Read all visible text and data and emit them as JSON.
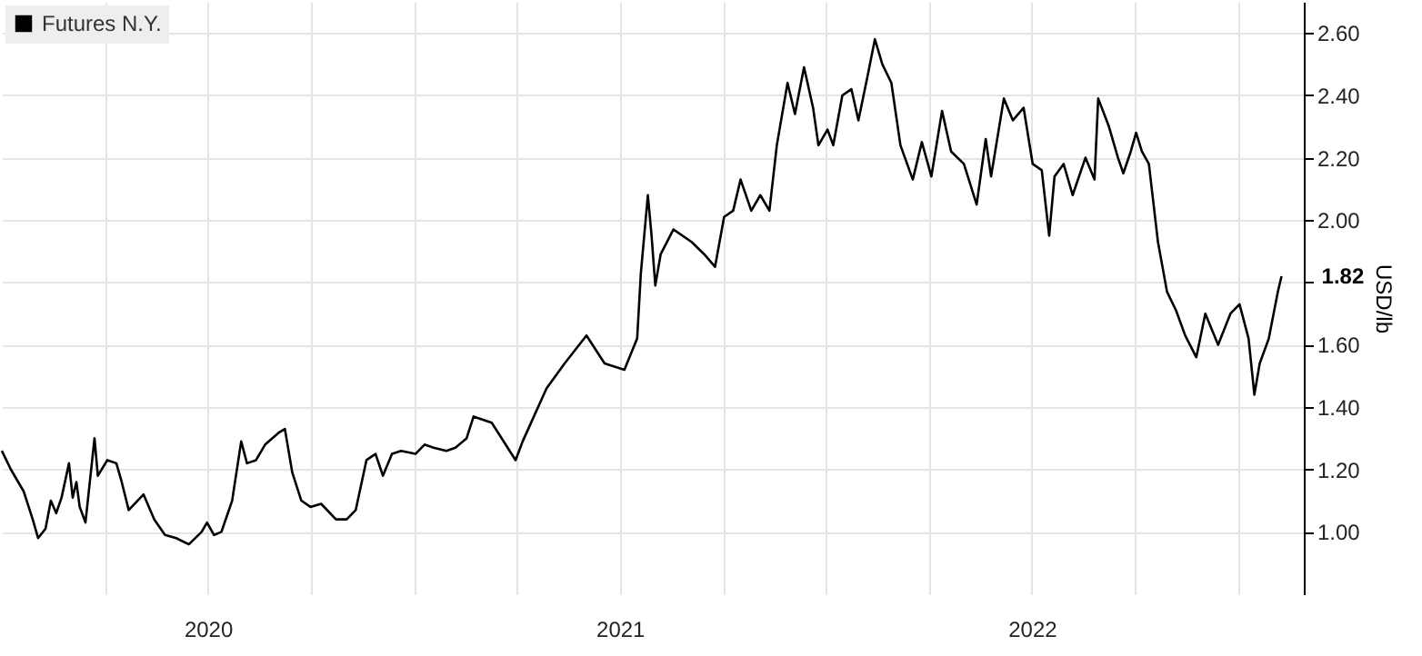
{
  "chart_data": {
    "type": "line",
    "ylabel": "USD/lb",
    "legend": "top left",
    "grid": true,
    "xlim": [
      2020,
      2023.16
    ],
    "xticks": [
      {
        "value": 2020.25,
        "label": null
      },
      {
        "value": 2020.5,
        "label": "2020"
      },
      {
        "value": 2020.75,
        "label": null
      },
      {
        "value": 2021,
        "label": null
      },
      {
        "value": 2021.25,
        "label": null
      },
      {
        "value": 2021.5,
        "label": "2021"
      },
      {
        "value": 2021.75,
        "label": null
      },
      {
        "value": 2022,
        "label": null
      },
      {
        "value": 2022.25,
        "label": null
      },
      {
        "value": 2022.5,
        "label": "2022"
      },
      {
        "value": 2022.75,
        "label": null
      },
      {
        "value": 2023,
        "label": null
      }
    ],
    "ylim": [
      0.8,
      2.7
    ],
    "yticks": [
      {
        "value": 1,
        "label": "1.00"
      },
      {
        "value": 1.2,
        "label": "1.20"
      },
      {
        "value": 1.4,
        "label": "1.40"
      },
      {
        "value": 1.6,
        "label": "1.60"
      },
      {
        "value": 1.8,
        "label": null
      },
      {
        "value": 2,
        "label": "2.00"
      },
      {
        "value": 2.2,
        "label": "2.20"
      },
      {
        "value": 2.4,
        "label": "2.40"
      },
      {
        "value": 2.6,
        "label": "2.60"
      }
    ],
    "annotations": [
      {
        "text": "1.82",
        "x": 2023.106,
        "y": 1.82
      }
    ],
    "series": [
      {
        "name": "Futures N.Y.",
        "color": "#000000",
        "x": [
          2020,
          2020.022,
          2020.053,
          2020.075,
          2020.088,
          2020.106,
          2020.119,
          2020.132,
          2020.145,
          2020.163,
          2020.172,
          2020.181,
          2020.189,
          2020.203,
          2020.225,
          2020.233,
          2020.256,
          2020.278,
          2020.291,
          2020.308,
          2020.344,
          2020.37,
          2020.396,
          2020.423,
          2020.454,
          2020.485,
          2020.498,
          2020.515,
          2020.533,
          2020.546,
          2020.559,
          2020.581,
          2020.595,
          2020.617,
          2020.639,
          2020.674,
          2020.687,
          2020.705,
          2020.727,
          2020.749,
          2020.775,
          2020.811,
          2020.837,
          2020.859,
          2020.885,
          2020.907,
          2020.925,
          2020.947,
          2020.969,
          2021.004,
          2021.026,
          2021.048,
          2021.079,
          2021.101,
          2021.128,
          2021.145,
          2021.189,
          2021.247,
          2021.264,
          2021.322,
          2021.366,
          2021.419,
          2021.463,
          2021.511,
          2021.542,
          2021.551,
          2021.568,
          2021.577,
          2021.586,
          2021.599,
          2021.63,
          2021.674,
          2021.705,
          2021.731,
          2021.753,
          2021.775,
          2021.793,
          2021.819,
          2021.841,
          2021.863,
          2021.881,
          2021.907,
          2021.925,
          2021.947,
          2021.969,
          2021.982,
          2022.004,
          2022.018,
          2022.04,
          2022.062,
          2022.079,
          2022.101,
          2022.119,
          2022.137,
          2022.159,
          2022.181,
          2022.211,
          2022.233,
          2022.256,
          2022.282,
          2022.304,
          2022.335,
          2022.366,
          2022.388,
          2022.401,
          2022.432,
          2022.454,
          2022.48,
          2022.502,
          2022.524,
          2022.542,
          2022.555,
          2022.577,
          2022.599,
          2022.63,
          2022.652,
          2022.661,
          2022.687,
          2022.709,
          2022.722,
          2022.74,
          2022.753,
          2022.767,
          2022.784,
          2022.806,
          2022.828,
          2022.85,
          2022.872,
          2022.899,
          2022.921,
          2022.952,
          2022.982,
          2023.004,
          2023.026,
          2023.04,
          2023.053,
          2023.075,
          2023.097,
          2023.106
        ],
        "values": [
          1.26,
          1.2,
          1.13,
          1.04,
          0.98,
          1.01,
          1.1,
          1.06,
          1.11,
          1.22,
          1.11,
          1.16,
          1.08,
          1.03,
          1.3,
          1.18,
          1.23,
          1.22,
          1.16,
          1.07,
          1.12,
          1.04,
          0.99,
          0.98,
          0.96,
          1.0,
          1.03,
          0.99,
          1.0,
          1.05,
          1.1,
          1.29,
          1.22,
          1.23,
          1.28,
          1.32,
          1.33,
          1.19,
          1.1,
          1.08,
          1.09,
          1.04,
          1.04,
          1.07,
          1.23,
          1.25,
          1.18,
          1.25,
          1.26,
          1.25,
          1.28,
          1.27,
          1.26,
          1.27,
          1.3,
          1.37,
          1.35,
          1.23,
          1.29,
          1.46,
          1.54,
          1.63,
          1.54,
          1.52,
          1.62,
          1.83,
          2.08,
          1.95,
          1.79,
          1.89,
          1.97,
          1.93,
          1.89,
          1.85,
          2.01,
          2.03,
          2.13,
          2.03,
          2.08,
          2.03,
          2.24,
          2.44,
          2.34,
          2.49,
          2.36,
          2.24,
          2.29,
          2.24,
          2.4,
          2.42,
          2.32,
          2.46,
          2.58,
          2.5,
          2.44,
          2.24,
          2.13,
          2.25,
          2.14,
          2.35,
          2.22,
          2.18,
          2.05,
          2.26,
          2.14,
          2.39,
          2.32,
          2.36,
          2.18,
          2.16,
          1.95,
          2.14,
          2.18,
          2.08,
          2.2,
          2.13,
          2.39,
          2.3,
          2.2,
          2.15,
          2.22,
          2.28,
          2.22,
          2.18,
          1.93,
          1.77,
          1.71,
          1.63,
          1.56,
          1.7,
          1.6,
          1.7,
          1.73,
          1.62,
          1.44,
          1.54,
          1.62,
          1.77,
          1.82
        ]
      }
    ]
  }
}
